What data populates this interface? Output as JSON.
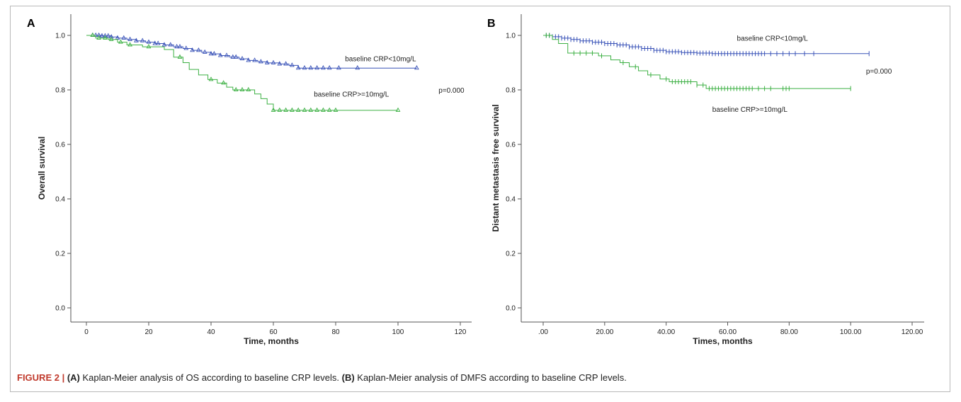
{
  "figure": {
    "caption_prefix": "FIGURE 2 |",
    "caption_a_label": "(A)",
    "caption_a_text": " Kaplan-Meier analysis of OS according to baseline CRP levels. ",
    "caption_b_label": "(B)",
    "caption_b_text": " Kaplan-Meier analysis of DMFS according to baseline CRP levels."
  },
  "chart_data": [
    {
      "type": "line",
      "panel": "A",
      "xlabel": "Time, months",
      "ylabel": "Overall survival",
      "xlim": [
        0,
        125
      ],
      "ylim": [
        0,
        1.0
      ],
      "xticks": [
        0,
        20,
        40,
        60,
        80,
        100,
        120
      ],
      "xtick_labels": [
        "0",
        "20",
        "40",
        "60",
        "80",
        "100",
        "120"
      ],
      "yticks": [
        0,
        0.2,
        0.4,
        0.6,
        0.8,
        1.0
      ],
      "ytick_labels": [
        "0.0",
        "0.2",
        "0.4",
        "0.6",
        "0.8",
        "1.0"
      ],
      "grid": false,
      "censor_marker": "triangle",
      "series": [
        {
          "name": "baseline CRP<10mg/L",
          "color": "#3a53b8",
          "steps": [
            [
              0,
              1.0
            ],
            [
              5,
              0.998
            ],
            [
              8,
              0.994
            ],
            [
              10,
              0.99
            ],
            [
              13,
              0.985
            ],
            [
              16,
              0.98
            ],
            [
              19,
              0.975
            ],
            [
              22,
              0.97
            ],
            [
              25,
              0.965
            ],
            [
              28,
              0.958
            ],
            [
              31,
              0.952
            ],
            [
              34,
              0.945
            ],
            [
              37,
              0.938
            ],
            [
              40,
              0.932
            ],
            [
              43,
              0.926
            ],
            [
              46,
              0.92
            ],
            [
              49,
              0.914
            ],
            [
              52,
              0.908
            ],
            [
              55,
              0.903
            ],
            [
              58,
              0.899
            ],
            [
              62,
              0.895
            ],
            [
              65,
              0.89
            ],
            [
              68,
              0.88
            ],
            [
              106,
              0.88
            ]
          ],
          "censors": [
            2,
            3,
            4,
            5,
            6,
            7,
            8,
            10,
            12,
            14,
            16,
            18,
            20,
            22,
            23,
            25,
            27,
            29,
            30,
            32,
            34,
            36,
            38,
            40,
            41,
            43,
            45,
            47,
            48,
            50,
            52,
            54,
            56,
            58,
            60,
            62,
            64,
            66,
            68,
            70,
            72,
            74,
            76,
            78,
            81,
            87,
            106
          ]
        },
        {
          "name": "baseline CRP>=10mg/L",
          "color": "#3cb043",
          "steps": [
            [
              0,
              1.0
            ],
            [
              3,
              0.99
            ],
            [
              7,
              0.985
            ],
            [
              10,
              0.975
            ],
            [
              13,
              0.965
            ],
            [
              18,
              0.958
            ],
            [
              25,
              0.948
            ],
            [
              28,
              0.92
            ],
            [
              31,
              0.9
            ],
            [
              33,
              0.875
            ],
            [
              36,
              0.855
            ],
            [
              39,
              0.838
            ],
            [
              42,
              0.825
            ],
            [
              45,
              0.81
            ],
            [
              47,
              0.8
            ],
            [
              54,
              0.785
            ],
            [
              56,
              0.768
            ],
            [
              58,
              0.748
            ],
            [
              60,
              0.725
            ],
            [
              100,
              0.725
            ]
          ],
          "censors": [
            2,
            4,
            6,
            8,
            11,
            14,
            20,
            30,
            40,
            44,
            48,
            50,
            52,
            60,
            62,
            64,
            66,
            68,
            70,
            72,
            74,
            76,
            78,
            80,
            100
          ]
        }
      ],
      "annotations": [
        {
          "text": "baseline CRP<10mg/L",
          "x": 83,
          "y": 0.905
        },
        {
          "text": "baseline CRP>=10mg/L",
          "x": 73,
          "y": 0.775
        },
        {
          "text": "p=0.000",
          "x": 113,
          "y": 0.79
        }
      ]
    },
    {
      "type": "line",
      "panel": "B",
      "xlabel": "Times, months",
      "ylabel": "Distant metastasis free survival",
      "xlim": [
        0,
        125
      ],
      "ylim": [
        0,
        1.0
      ],
      "xticks": [
        0,
        20,
        40,
        60,
        80,
        100,
        120
      ],
      "xtick_labels": [
        ".00",
        "20.00",
        "40.00",
        "60.00",
        "80.00",
        "100.00",
        "120.00"
      ],
      "yticks": [
        0,
        0.2,
        0.4,
        0.6,
        0.8,
        1.0
      ],
      "ytick_labels": [
        "0.0",
        "0.2",
        "0.4",
        "0.6",
        "0.8",
        "1.0"
      ],
      "grid": false,
      "censor_marker": "plus",
      "series": [
        {
          "name": "baseline CRP<10mg/L",
          "color": "#3a53b8",
          "steps": [
            [
              0,
              1.0
            ],
            [
              3,
              0.995
            ],
            [
              6,
              0.99
            ],
            [
              9,
              0.985
            ],
            [
              12,
              0.98
            ],
            [
              16,
              0.975
            ],
            [
              20,
              0.97
            ],
            [
              24,
              0.965
            ],
            [
              28,
              0.958
            ],
            [
              32,
              0.952
            ],
            [
              36,
              0.945
            ],
            [
              40,
              0.94
            ],
            [
              45,
              0.937
            ],
            [
              50,
              0.935
            ],
            [
              55,
              0.933
            ],
            [
              106,
              0.933
            ]
          ],
          "censors": [
            1,
            2,
            3,
            4,
            5,
            6,
            7,
            8,
            9,
            10,
            11,
            12,
            13,
            14,
            15,
            16,
            17,
            18,
            19,
            20,
            21,
            22,
            23,
            24,
            25,
            26,
            27,
            28,
            29,
            30,
            31,
            32,
            33,
            34,
            35,
            36,
            37,
            38,
            39,
            40,
            41,
            42,
            43,
            44,
            45,
            46,
            47,
            48,
            49,
            50,
            51,
            52,
            53,
            54,
            55,
            56,
            57,
            58,
            59,
            60,
            61,
            62,
            63,
            64,
            65,
            66,
            67,
            68,
            69,
            70,
            71,
            72,
            74,
            76,
            78,
            80,
            82,
            85,
            88,
            106
          ]
        },
        {
          "name": "baseline CRP>=10mg/L",
          "color": "#3cb043",
          "steps": [
            [
              0,
              1.0
            ],
            [
              3,
              0.985
            ],
            [
              5,
              0.97
            ],
            [
              8,
              0.935
            ],
            [
              18,
              0.925
            ],
            [
              22,
              0.91
            ],
            [
              25,
              0.9
            ],
            [
              28,
              0.885
            ],
            [
              31,
              0.87
            ],
            [
              34,
              0.855
            ],
            [
              38,
              0.84
            ],
            [
              41,
              0.83
            ],
            [
              50,
              0.818
            ],
            [
              53,
              0.805
            ],
            [
              100,
              0.805
            ]
          ],
          "censors": [
            1,
            2,
            10,
            12,
            14,
            16,
            19,
            26,
            30,
            35,
            40,
            42,
            43,
            44,
            45,
            46,
            47,
            48,
            50,
            52,
            54,
            55,
            56,
            57,
            58,
            59,
            60,
            61,
            62,
            63,
            64,
            65,
            66,
            67,
            68,
            70,
            72,
            74,
            78,
            79,
            80,
            100
          ]
        }
      ],
      "annotations": [
        {
          "text": "baseline CRP<10mg/L",
          "x": 63,
          "y": 0.98
        },
        {
          "text": "baseline CRP>=10mg/L",
          "x": 55,
          "y": 0.72
        },
        {
          "text": "p=0.000",
          "x": 105,
          "y": 0.86
        }
      ]
    }
  ]
}
